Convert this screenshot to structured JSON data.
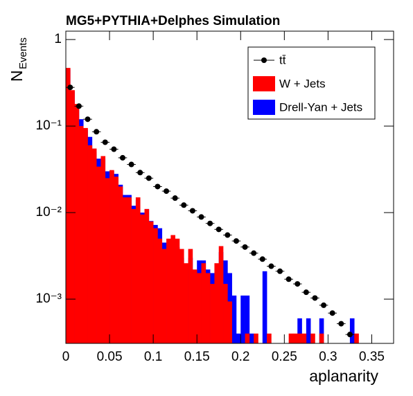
{
  "chart_data": {
    "type": "histogram",
    "title": "MG5+PYTHIA+Delphes Simulation",
    "xlabel": "aplanarity",
    "ylabel": "N",
    "ylabel_sub": "Events",
    "log_y": true,
    "legend": "upper right",
    "xlim": [
      0,
      0.375
    ],
    "ylim": [
      0.000308,
      1.25
    ],
    "xticks": [
      0,
      0.05,
      0.1,
      0.15,
      0.2,
      0.25,
      0.3,
      0.35
    ],
    "yticks": [
      {
        "value": 0.001,
        "label": "10⁻³"
      },
      {
        "value": 0.01,
        "label": "10⁻²"
      },
      {
        "value": 0.1,
        "label": "10⁻¹"
      },
      1
    ],
    "bins": [
      0,
      0.005,
      0.01,
      0.015,
      0.02,
      0.025,
      0.03,
      0.035,
      0.04,
      0.045,
      0.05,
      0.055,
      0.06,
      0.065,
      0.07,
      0.075,
      0.08,
      0.085,
      0.09,
      0.095,
      0.1,
      0.105,
      0.11,
      0.115,
      0.12,
      0.125,
      0.13,
      0.135,
      0.14,
      0.145,
      0.15,
      0.155,
      0.16,
      0.165,
      0.17,
      0.175,
      0.18,
      0.185,
      0.19,
      0.195,
      0.2,
      0.205,
      0.21,
      0.215,
      0.22,
      0.225,
      0.23,
      0.235,
      0.24,
      0.245,
      0.25,
      0.255,
      0.26,
      0.265,
      0.27,
      0.275,
      0.28,
      0.285,
      0.29,
      0.295,
      0.3,
      0.305,
      0.31,
      0.315,
      0.32,
      0.325,
      0.33,
      0.335,
      0.34,
      0.345,
      0.35
    ],
    "series": [
      {
        "name": "Drell-Yan + Jets",
        "color": "#0000ff",
        "values": [
          0.45,
          0.25,
          0.17,
          0.12,
          0.09,
          0.075,
          0.05,
          0.042,
          0.042,
          0.03,
          0.03,
          0.028,
          0.021,
          0.016,
          0.016,
          0.012,
          0.014,
          0.01,
          0.011,
          0.008,
          0.0072,
          0.0066,
          0.0045,
          0.0045,
          0.005,
          0.004,
          0.003,
          0.0025,
          0.003,
          0.002,
          0.0028,
          0.0028,
          0.0022,
          0.002,
          0.002,
          0.0035,
          0.0028,
          0.002,
          0.0011,
          0.0004,
          0.0011,
          0.0011,
          0.0004,
          0,
          0,
          0.0021,
          0,
          0,
          0,
          0,
          0,
          0,
          0,
          0.0006,
          0,
          0.0006,
          0,
          0,
          0.0006,
          0,
          0,
          0,
          0,
          0,
          0,
          0.0006,
          0,
          0,
          0,
          0
        ]
      },
      {
        "name": "W + Jets",
        "color": "#ff0000",
        "values": [
          0.47,
          0.26,
          0.18,
          0.1,
          0.095,
          0.06,
          0.055,
          0.034,
          0.045,
          0.025,
          0.031,
          0.026,
          0.02,
          0.015,
          0.015,
          0.011,
          0.015,
          0.0095,
          0.011,
          0.0079,
          0.0066,
          0.005,
          0.0038,
          0.005,
          0.0055,
          0.005,
          0.0038,
          0.0026,
          0.0038,
          0.0022,
          0.002,
          0.0026,
          0.002,
          0.0015,
          0.0026,
          0.0041,
          0.0015,
          0.00094,
          0,
          0,
          0,
          0.0004,
          0,
          0.0004,
          0,
          0,
          0.0004,
          0,
          0,
          0,
          0,
          0.0004,
          0.0004,
          0.0004,
          0.0004,
          0,
          0.0004,
          0,
          0.0004,
          0,
          0,
          0,
          0,
          0,
          0,
          0,
          0.0004,
          0,
          0,
          0
        ]
      },
      {
        "name": "tt̄",
        "color": "#000000",
        "style": "points",
        "x": [
          0.005,
          0.015,
          0.025,
          0.035,
          0.045,
          0.055,
          0.065,
          0.075,
          0.085,
          0.095,
          0.105,
          0.115,
          0.125,
          0.135,
          0.145,
          0.155,
          0.165,
          0.175,
          0.185,
          0.195,
          0.205,
          0.215,
          0.225,
          0.235,
          0.245,
          0.255,
          0.265,
          0.275,
          0.285,
          0.295,
          0.305,
          0.315,
          0.325
        ],
        "values": [
          0.28,
          0.17,
          0.12,
          0.086,
          0.065,
          0.054,
          0.043,
          0.036,
          0.029,
          0.025,
          0.02,
          0.0177,
          0.0147,
          0.0122,
          0.0105,
          0.0089,
          0.0075,
          0.0064,
          0.0055,
          0.0047,
          0.004,
          0.0034,
          0.0029,
          0.0024,
          0.0021,
          0.0017,
          0.0015,
          0.0012,
          0.00103,
          0.00085,
          0.00069,
          0.00052,
          0.00039
        ]
      }
    ]
  }
}
